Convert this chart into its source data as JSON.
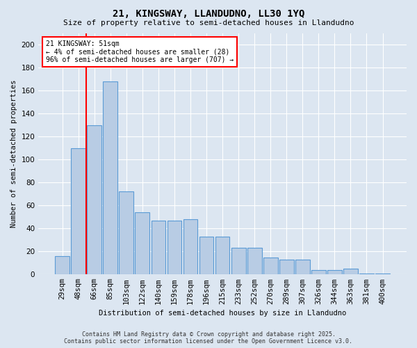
{
  "title1": "21, KINGSWAY, LLANDUDNO, LL30 1YQ",
  "title2": "Size of property relative to semi-detached houses in Llandudno",
  "xlabel": "Distribution of semi-detached houses by size in Llandudno",
  "ylabel": "Number of semi-detached properties",
  "categories": [
    "29sqm",
    "48sqm",
    "66sqm",
    "85sqm",
    "103sqm",
    "122sqm",
    "140sqm",
    "159sqm",
    "178sqm",
    "196sqm",
    "215sqm",
    "233sqm",
    "252sqm",
    "270sqm",
    "289sqm",
    "307sqm",
    "326sqm",
    "344sqm",
    "363sqm",
    "381sqm",
    "400sqm"
  ],
  "values": [
    16,
    110,
    130,
    168,
    72,
    54,
    47,
    47,
    48,
    33,
    33,
    23,
    23,
    15,
    13,
    13,
    4,
    4,
    5,
    1,
    1
  ],
  "bar_color": "#b8cce4",
  "bar_edge_color": "#5b9bd5",
  "annotation_text": "21 KINGSWAY: 51sqm\n← 4% of semi-detached houses are smaller (28)\n96% of semi-detached houses are larger (707) →",
  "annotation_box_color": "#ffffff",
  "annotation_box_edge": "#ff0000",
  "vline_color": "#ff0000",
  "vline_x": 1.5,
  "ylim": [
    0,
    210
  ],
  "yticks": [
    0,
    20,
    40,
    60,
    80,
    100,
    120,
    140,
    160,
    180,
    200
  ],
  "background_color": "#dce6f1",
  "grid_color": "#ffffff",
  "footer1": "Contains HM Land Registry data © Crown copyright and database right 2025.",
  "footer2": "Contains public sector information licensed under the Open Government Licence v3.0."
}
